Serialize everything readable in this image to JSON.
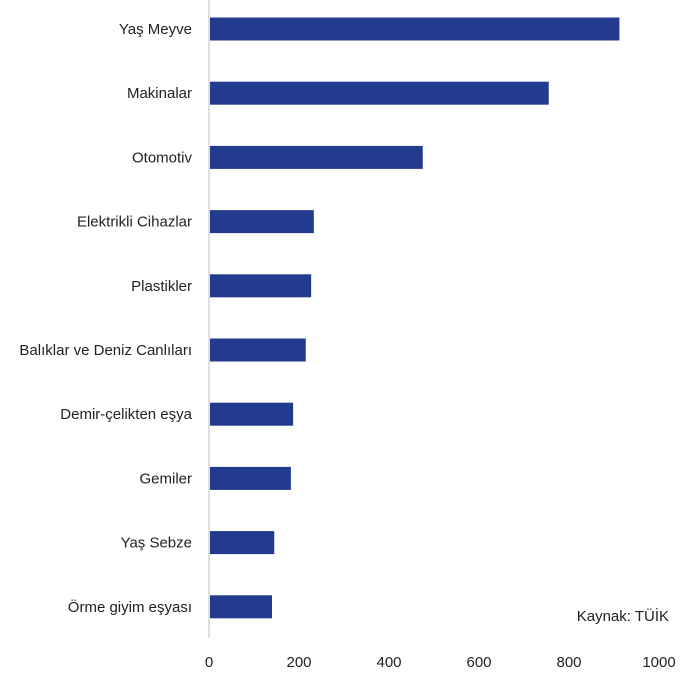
{
  "chart_data": {
    "type": "bar",
    "orientation": "horizontal",
    "categories": [
      "Yaş Meyve",
      "Makinalar",
      "Otomotiv",
      "Elektrikli Cihazlar",
      "Plastikler",
      "Balıklar ve Deniz Canlıları",
      "Demir-çelikten eşya",
      "Gemiler",
      "Yaş Sebze",
      "Örme giyim eşyası"
    ],
    "values": [
      912,
      755,
      475,
      233,
      227,
      215,
      187,
      182,
      145,
      140
    ],
    "xticks": [
      "0",
      "200",
      "400",
      "600",
      "800",
      "1000"
    ],
    "xlim": [
      0,
      1000
    ],
    "grid": false,
    "bar_color": "#233b8f"
  },
  "source_text": "Kaynak: TÜİK"
}
